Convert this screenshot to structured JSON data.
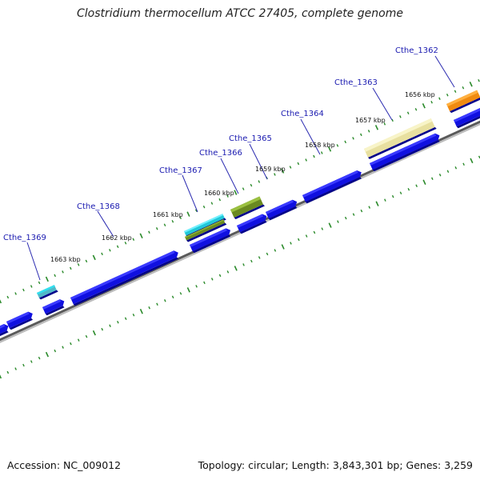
{
  "title": "Clostridium thermocellum ATCC 27405, complete genome",
  "accession": "Accession: NC_009012",
  "topology": "Topology: circular; Length: 3,843,301 bp; Genes: 3,259",
  "colors": {
    "cds": "#1010e0",
    "backbone": "#888888",
    "tick": "#2a8a2a",
    "label": "#1a1ab0",
    "cyan": "#20c8d8",
    "olive": "#6a8a20",
    "khaki": "#e8e0a0",
    "orange": "#f08a10"
  },
  "kbp_ticks": [
    "1663 kbp",
    "1662 kbp",
    "1661 kbp",
    "1660 kbp",
    "1659 kbp",
    "1658 kbp",
    "1657 kbp",
    "1656 kbp"
  ],
  "gene_labels": [
    "Cthe_1369",
    "Cthe_1368",
    "Cthe_1367",
    "Cthe_1366",
    "Cthe_1365",
    "Cthe_1364",
    "Cthe_1363",
    "Cthe_1362"
  ]
}
